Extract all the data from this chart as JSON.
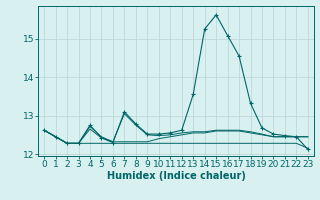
{
  "xlabel": "Humidex (Indice chaleur)",
  "bg_color": "#d8f0f0",
  "grid_color": "#b8d4d4",
  "line_color": "#006666",
  "x": [
    0,
    1,
    2,
    3,
    4,
    5,
    6,
    7,
    8,
    9,
    10,
    11,
    12,
    13,
    14,
    15,
    16,
    17,
    18,
    19,
    20,
    21,
    22,
    23
  ],
  "series": [
    [
      12.62,
      12.45,
      12.28,
      12.28,
      12.28,
      12.28,
      12.28,
      12.28,
      12.28,
      12.28,
      12.28,
      12.28,
      12.28,
      12.28,
      12.28,
      12.28,
      12.28,
      12.28,
      12.28,
      12.28,
      12.28,
      12.28,
      12.28,
      12.15
    ],
    [
      12.62,
      12.45,
      12.28,
      12.28,
      12.65,
      12.42,
      12.32,
      12.32,
      12.32,
      12.32,
      12.4,
      12.45,
      12.5,
      12.55,
      12.55,
      12.6,
      12.6,
      12.6,
      12.55,
      12.5,
      12.45,
      12.45,
      12.45,
      12.45
    ],
    [
      12.62,
      12.45,
      12.28,
      12.28,
      12.72,
      12.45,
      12.32,
      13.05,
      12.75,
      12.5,
      12.48,
      12.5,
      12.55,
      12.58,
      12.58,
      12.62,
      12.62,
      12.62,
      12.58,
      12.52,
      12.45,
      12.45,
      12.45,
      12.45
    ],
    [
      12.62,
      12.45,
      12.28,
      12.28,
      12.75,
      12.42,
      12.3,
      13.1,
      12.78,
      12.52,
      12.52,
      12.55,
      12.62,
      13.55,
      15.25,
      15.62,
      15.08,
      14.55,
      13.32,
      12.68,
      12.52,
      12.48,
      12.45,
      12.12
    ]
  ],
  "main_series_idx": 3,
  "ylim": [
    11.95,
    15.85
  ],
  "xlim": [
    -0.5,
    23.5
  ],
  "yticks": [
    12,
    13,
    14,
    15
  ],
  "xticks": [
    0,
    1,
    2,
    3,
    4,
    5,
    6,
    7,
    8,
    9,
    10,
    11,
    12,
    13,
    14,
    15,
    16,
    17,
    18,
    19,
    20,
    21,
    22,
    23
  ],
  "xlabel_fontsize": 7,
  "tick_fontsize": 6.5
}
